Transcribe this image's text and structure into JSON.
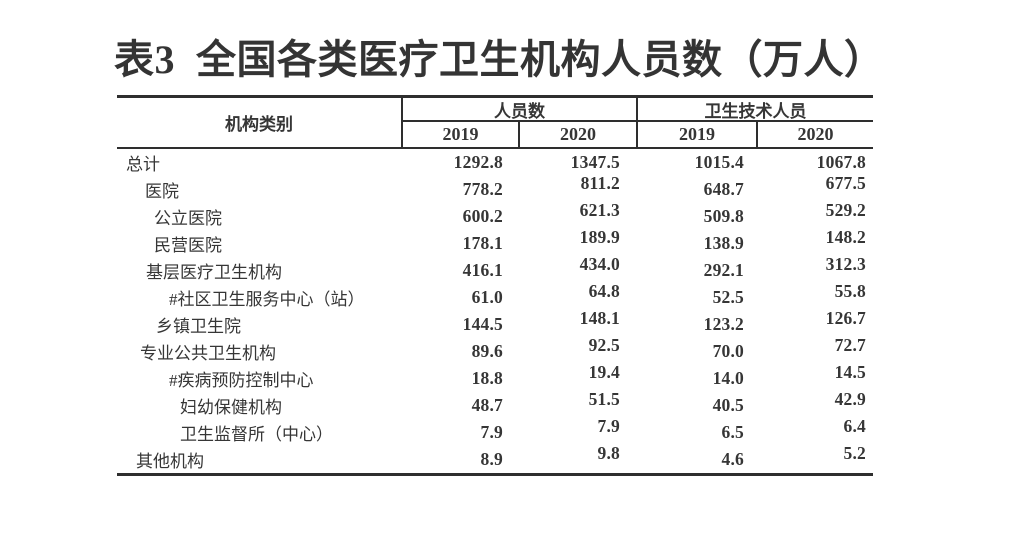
{
  "title": "表3  全国各类医疗卫生机构人员数（万人）",
  "colors": {
    "text": "#363636",
    "title_text": "#343434",
    "line": "#2e2e2e",
    "background": "#ffffff"
  },
  "table": {
    "category_header": "机构类别",
    "groups": [
      {
        "label": "人员数",
        "years": [
          "2019",
          "2020"
        ]
      },
      {
        "label": "卫生技术人员",
        "years": [
          "2019",
          "2020"
        ]
      }
    ],
    "rows": [
      {
        "label": "总计",
        "indent": 9,
        "values": [
          "1292.8",
          "1347.5",
          "1015.4",
          "1067.8"
        ]
      },
      {
        "label": "医院",
        "indent": 28,
        "values": [
          "778.2",
          "811.2",
          "648.7",
          "677.5"
        ]
      },
      {
        "label": "公立医院",
        "indent": 37,
        "values": [
          "600.2",
          "621.3",
          "509.8",
          "529.2"
        ]
      },
      {
        "label": "民营医院",
        "indent": 37,
        "values": [
          "178.1",
          "189.9",
          "138.9",
          "148.2"
        ]
      },
      {
        "label": "基层医疗卫生机构",
        "indent": 29,
        "values": [
          "416.1",
          "434.0",
          "292.1",
          "312.3"
        ]
      },
      {
        "label": "#社区卫生服务中心（站）",
        "indent": 52,
        "values": [
          "61.0",
          "64.8",
          "52.5",
          "55.8"
        ]
      },
      {
        "label": "乡镇卫生院",
        "indent": 39,
        "values": [
          "144.5",
          "148.1",
          "123.2",
          "126.7"
        ]
      },
      {
        "label": "专业公共卫生机构",
        "indent": 23,
        "values": [
          "89.6",
          "92.5",
          "70.0",
          "72.7"
        ]
      },
      {
        "label": "#疾病预防控制中心",
        "indent": 52,
        "values": [
          "18.8",
          "19.4",
          "14.0",
          "14.5"
        ]
      },
      {
        "label": "妇幼保健机构",
        "indent": 63,
        "values": [
          "48.7",
          "51.5",
          "40.5",
          "42.9"
        ]
      },
      {
        "label": "卫生监督所（中心）",
        "indent": 63,
        "values": [
          "7.9",
          "7.9",
          "6.5",
          "6.4"
        ]
      },
      {
        "label": "其他机构",
        "indent": 19,
        "values": [
          "8.9",
          "9.8",
          "4.6",
          "5.2"
        ]
      }
    ]
  }
}
